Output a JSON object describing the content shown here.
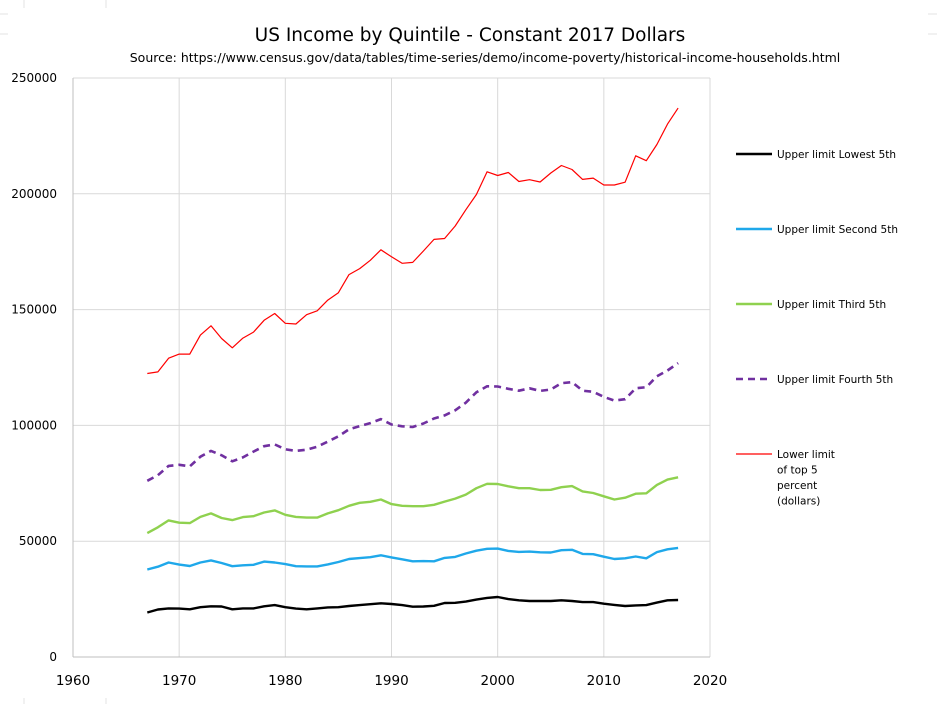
{
  "chart_data": {
    "type": "line",
    "title": "US Income by Quintile - Constant 2017 Dollars",
    "subtitle": "Source:  https://www.census.gov/data/tables/time-series/demo/income-poverty/historical-income-households.html",
    "xlim": [
      1960,
      2020
    ],
    "ylim": [
      0,
      250000
    ],
    "xticks": [
      1960,
      1970,
      1980,
      1990,
      2000,
      2010,
      2020
    ],
    "yticks": [
      0,
      50000,
      100000,
      150000,
      200000,
      250000
    ],
    "grid": true,
    "legend_position": "right",
    "x": [
      1967,
      1968,
      1969,
      1970,
      1971,
      1972,
      1973,
      1974,
      1975,
      1976,
      1977,
      1978,
      1979,
      1980,
      1981,
      1982,
      1983,
      1984,
      1985,
      1986,
      1987,
      1988,
      1989,
      1990,
      1991,
      1992,
      1993,
      1994,
      1995,
      1996,
      1997,
      1998,
      1999,
      2000,
      2001,
      2002,
      2003,
      2004,
      2005,
      2006,
      2007,
      2008,
      2009,
      2010,
      2011,
      2012,
      2013,
      2014,
      2015,
      2016,
      2017
    ],
    "series": [
      {
        "name": "Upper limit Lowest 5th",
        "color": "#000000",
        "style": "solid",
        "width": 2.4,
        "values": [
          19200,
          20500,
          21000,
          20900,
          20600,
          21500,
          21900,
          21800,
          20600,
          21000,
          21000,
          21900,
          22400,
          21500,
          20900,
          20600,
          21000,
          21400,
          21500,
          22000,
          22400,
          22800,
          23200,
          22900,
          22400,
          21700,
          21800,
          22100,
          23300,
          23400,
          23900,
          24800,
          25500,
          25900,
          25000,
          24500,
          24200,
          24200,
          24200,
          24500,
          24200,
          23700,
          23700,
          23000,
          22500,
          22000,
          22300,
          22400,
          23500,
          24500,
          24600
        ]
      },
      {
        "name": "Upper limit Second 5th",
        "color": "#1fa8ea",
        "style": "solid",
        "width": 2.4,
        "values": [
          37800,
          39000,
          40800,
          39900,
          39300,
          40800,
          41700,
          40600,
          39200,
          39600,
          39800,
          41200,
          40800,
          40100,
          39200,
          39100,
          39100,
          40000,
          41000,
          42300,
          42700,
          43100,
          43900,
          43000,
          42200,
          41300,
          41400,
          41300,
          42800,
          43200,
          44700,
          45900,
          46700,
          46800,
          45800,
          45400,
          45500,
          45200,
          45100,
          46100,
          46300,
          44500,
          44400,
          43300,
          42300,
          42600,
          43400,
          42600,
          45300,
          46500,
          47100
        ]
      },
      {
        "name": "Upper limit Third 5th",
        "color": "#8fd14f",
        "style": "solid",
        "width": 2.4,
        "values": [
          53500,
          56000,
          59000,
          58000,
          57800,
          60500,
          62000,
          60000,
          59100,
          60400,
          60800,
          62400,
          63300,
          61400,
          60500,
          60200,
          60200,
          62000,
          63400,
          65300,
          66600,
          67000,
          68000,
          66000,
          65300,
          65100,
          65100,
          65700,
          67100,
          68400,
          70100,
          72900,
          74800,
          74700,
          73700,
          72900,
          72900,
          72100,
          72200,
          73300,
          73800,
          71500,
          70800,
          69400,
          68000,
          68800,
          70500,
          70700,
          74300,
          76600,
          77600
        ]
      },
      {
        "name": "Upper limit Fourth 5th",
        "color": "#7030a0",
        "style": "dashed",
        "width": 2.6,
        "values": [
          76100,
          78500,
          82500,
          83000,
          82300,
          86500,
          89000,
          87100,
          84500,
          86200,
          88700,
          91000,
          91800,
          89700,
          89000,
          89500,
          90800,
          93000,
          95300,
          98300,
          99700,
          101000,
          102700,
          100400,
          99600,
          99300,
          100800,
          103000,
          104300,
          106500,
          109800,
          114300,
          116900,
          116800,
          115800,
          115000,
          116000,
          114900,
          115500,
          118200,
          118700,
          115000,
          114500,
          112300,
          110700,
          111300,
          116000,
          116500,
          121200,
          123700,
          126900
        ]
      },
      {
        "name": "Lower limit of top 5 percent (dollars)",
        "color": "#ff0000",
        "style": "solid",
        "width": 1.2,
        "values": [
          122400,
          123100,
          129000,
          130800,
          130800,
          139000,
          143000,
          137500,
          133500,
          137700,
          140300,
          145400,
          148300,
          144100,
          143800,
          147800,
          149500,
          154100,
          157300,
          165100,
          167700,
          171300,
          175800,
          172800,
          170000,
          170400,
          175300,
          180300,
          180700,
          186100,
          193100,
          199700,
          209500,
          207900,
          209200,
          205300,
          206100,
          205100,
          209000,
          212200,
          210500,
          206200,
          206800,
          203800,
          203800,
          205000,
          216400,
          214300,
          221300,
          230100,
          237000
        ]
      }
    ]
  },
  "legend": {
    "items": [
      {
        "label_lines": [
          "Upper limit Lowest 5th"
        ]
      },
      {
        "label_lines": [
          "Upper limit Second 5th"
        ]
      },
      {
        "label_lines": [
          "Upper limit Third 5th"
        ]
      },
      {
        "label_lines": [
          "Upper limit Fourth 5th"
        ]
      },
      {
        "label_lines": [
          "Lower limit",
          "of top 5",
          "percent",
          "(dollars)"
        ]
      }
    ]
  }
}
